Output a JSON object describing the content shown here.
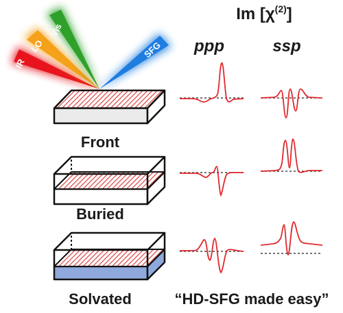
{
  "header": {
    "im_prefix": "Im [χ",
    "im_sup": "(2)",
    "im_suffix": "]",
    "col_ppp": "ppp",
    "col_ssp": "ssp"
  },
  "beams": {
    "ir": "IR",
    "lo": "LO",
    "vis": "Vis",
    "sfg": "SFG"
  },
  "samples": {
    "front": "Front",
    "buried": "Buried",
    "solvated": "Solvated"
  },
  "tagline": "“HD-SFG made easy”",
  "colors": {
    "ir": "#e8141d",
    "lo": "#f5a21a",
    "vis": "#2fa12b",
    "sfg": "#1f7de0",
    "hatch": "#d9423f",
    "solvent": "#8fa9dc",
    "trace": "#e0282d",
    "baseline": "#444444"
  }
}
